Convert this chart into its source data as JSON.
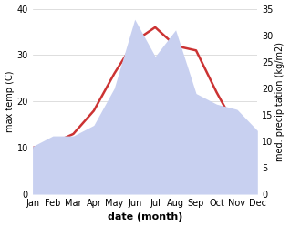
{
  "months": [
    "Jan",
    "Feb",
    "Mar",
    "Apr",
    "May",
    "Jun",
    "Jul",
    "Aug",
    "Sep",
    "Oct",
    "Nov",
    "Dec"
  ],
  "temp": [
    10,
    11,
    13,
    18,
    26,
    33,
    36,
    32,
    31,
    22,
    14,
    10
  ],
  "precip": [
    9,
    11,
    11,
    13,
    20,
    33,
    26,
    31,
    19,
    17,
    16,
    12
  ],
  "temp_color": "#cc3333",
  "precip_fill_color": "#c8d0f0",
  "temp_ylim": [
    0,
    40
  ],
  "precip_ylim": [
    0,
    35
  ],
  "xlabel": "date (month)",
  "ylabel_left": "max temp (C)",
  "ylabel_right": "med. precipitation (kg/m2)",
  "bg_color": "#ffffff",
  "grid_color": "#d0d0d0",
  "label_fontsize": 8,
  "tick_fontsize": 7
}
